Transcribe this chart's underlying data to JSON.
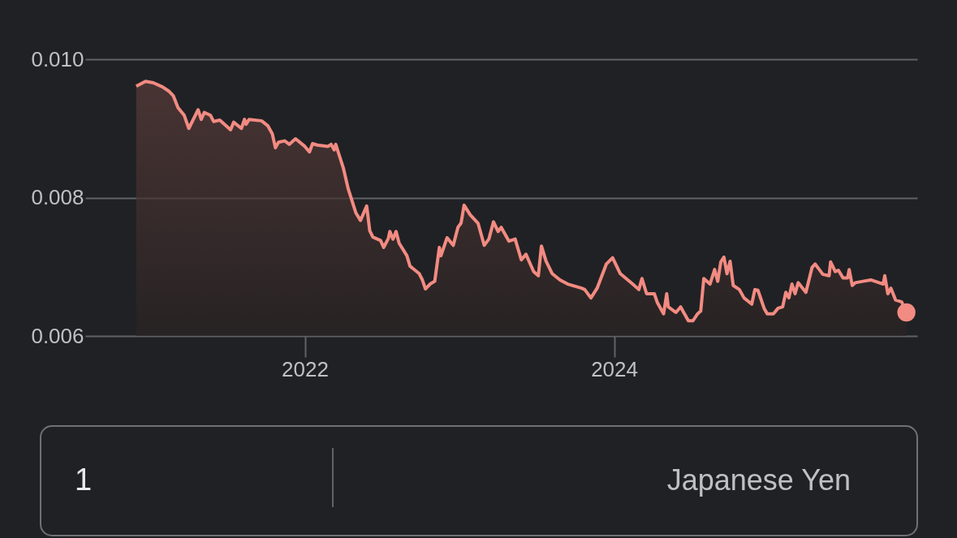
{
  "chart_data": {
    "type": "area",
    "xlim": [
      2020.58,
      2025.96
    ],
    "ylim": [
      0.006,
      0.01
    ],
    "xticks": [
      2022,
      2024
    ],
    "yticks": [
      0.006,
      0.008,
      {
        "value": 0.01,
        "label": "0.010"
      }
    ],
    "grid": "y",
    "annotations": [
      "1",
      "Japanese Yen"
    ],
    "series": [
      {
        "color": "#f28b82",
        "x": [
          2020.91,
          2020.97,
          2021.02,
          2021.08,
          2021.12,
          2021.15,
          2021.18,
          2021.22,
          2021.25,
          2021.31,
          2021.33,
          2021.35,
          2021.39,
          2021.41,
          2021.45,
          2021.52,
          2021.54,
          2021.59,
          2021.61,
          2021.62,
          2021.64,
          2021.72,
          2021.76,
          2021.79,
          2021.81,
          2021.83,
          2021.87,
          2021.9,
          2021.94,
          2022.0,
          2022.03,
          2022.05,
          2022.08,
          2022.15,
          2022.17,
          2022.19,
          2022.2,
          2022.23,
          2022.25,
          2022.28,
          2022.33,
          2022.36,
          2022.4,
          2022.42,
          2022.44,
          2022.49,
          2022.51,
          2022.54,
          2022.55,
          2022.57,
          2022.59,
          2022.61,
          2022.66,
          2022.68,
          2022.74,
          2022.76,
          2022.78,
          2022.81,
          2022.84,
          2022.87,
          2022.88,
          2022.92,
          2022.96,
          2022.99,
          2023.01,
          2023.03,
          2023.07,
          2023.12,
          2023.16,
          2023.19,
          2023.22,
          2023.25,
          2023.27,
          2023.32,
          2023.36,
          2023.4,
          2023.43,
          2023.48,
          2023.51,
          2023.53,
          2023.56,
          2023.6,
          2023.65,
          2023.7,
          2023.79,
          2023.81,
          2023.85,
          2023.89,
          2023.95,
          2023.99,
          2024.04,
          2024.12,
          2024.16,
          2024.18,
          2024.21,
          2024.26,
          2024.28,
          2024.32,
          2024.34,
          2024.35,
          2024.4,
          2024.43,
          2024.48,
          2024.51,
          2024.54,
          2024.56,
          2024.58,
          2024.62,
          2024.65,
          2024.67,
          2024.69,
          2024.71,
          2024.73,
          2024.75,
          2024.77,
          2024.81,
          2024.84,
          2024.89,
          2024.91,
          2024.93,
          2024.97,
          2024.99,
          2025.03,
          2025.06,
          2025.09,
          2025.11,
          2025.13,
          2025.15,
          2025.17,
          2025.19,
          2025.24,
          2025.28,
          2025.3,
          2025.35,
          2025.39,
          2025.4,
          2025.43,
          2025.45,
          2025.48,
          2025.51,
          2025.52,
          2025.54,
          2025.56,
          2025.61,
          2025.66,
          2025.74,
          2025.75,
          2025.77,
          2025.79,
          2025.82,
          2025.86,
          2025.89
        ],
        "values": [
          0.00961,
          0.00968,
          0.00966,
          0.0096,
          0.00954,
          0.00947,
          0.0093,
          0.00919,
          0.009,
          0.00927,
          0.00913,
          0.00923,
          0.00919,
          0.0091,
          0.00912,
          0.00898,
          0.00909,
          0.009,
          0.00913,
          0.00906,
          0.00913,
          0.00911,
          0.00904,
          0.00892,
          0.00872,
          0.0088,
          0.00882,
          0.00877,
          0.00885,
          0.00874,
          0.00866,
          0.00878,
          0.00876,
          0.00874,
          0.00877,
          0.00869,
          0.00877,
          0.00856,
          0.00842,
          0.00813,
          0.00778,
          0.00767,
          0.00788,
          0.00752,
          0.00743,
          0.00738,
          0.00728,
          0.00741,
          0.00751,
          0.0074,
          0.00751,
          0.00734,
          0.00716,
          0.00701,
          0.0069,
          0.00681,
          0.00668,
          0.00675,
          0.00679,
          0.00728,
          0.00716,
          0.00742,
          0.00731,
          0.00757,
          0.00763,
          0.00789,
          0.00775,
          0.00763,
          0.00731,
          0.0074,
          0.00765,
          0.00751,
          0.00757,
          0.00737,
          0.0074,
          0.0071,
          0.00718,
          0.00693,
          0.00687,
          0.0073,
          0.00708,
          0.0069,
          0.00681,
          0.00675,
          0.00669,
          0.00667,
          0.00655,
          0.00669,
          0.00704,
          0.00713,
          0.0069,
          0.00675,
          0.00667,
          0.00683,
          0.00661,
          0.00661,
          0.00648,
          0.00632,
          0.00661,
          0.00642,
          0.00634,
          0.00642,
          0.00622,
          0.00622,
          0.00632,
          0.00636,
          0.00683,
          0.00675,
          0.00696,
          0.00679,
          0.00707,
          0.00714,
          0.0069,
          0.00708,
          0.00673,
          0.00667,
          0.00655,
          0.00646,
          0.00667,
          0.00666,
          0.0064,
          0.00632,
          0.00632,
          0.0064,
          0.00642,
          0.00663,
          0.00655,
          0.00675,
          0.00661,
          0.00677,
          0.00663,
          0.00699,
          0.00704,
          0.00689,
          0.00687,
          0.00707,
          0.00693,
          0.00695,
          0.00684,
          0.00684,
          0.00696,
          0.00673,
          0.00677,
          0.00679,
          0.00681,
          0.00675,
          0.00687,
          0.00661,
          0.00669,
          0.00652,
          0.00649,
          0.00634
        ]
      },
      {
        "type": "scatter",
        "color": "#f28b82",
        "marker": "circle",
        "x": [
          2025.89
        ],
        "values": [
          0.00634
        ]
      }
    ]
  }
}
